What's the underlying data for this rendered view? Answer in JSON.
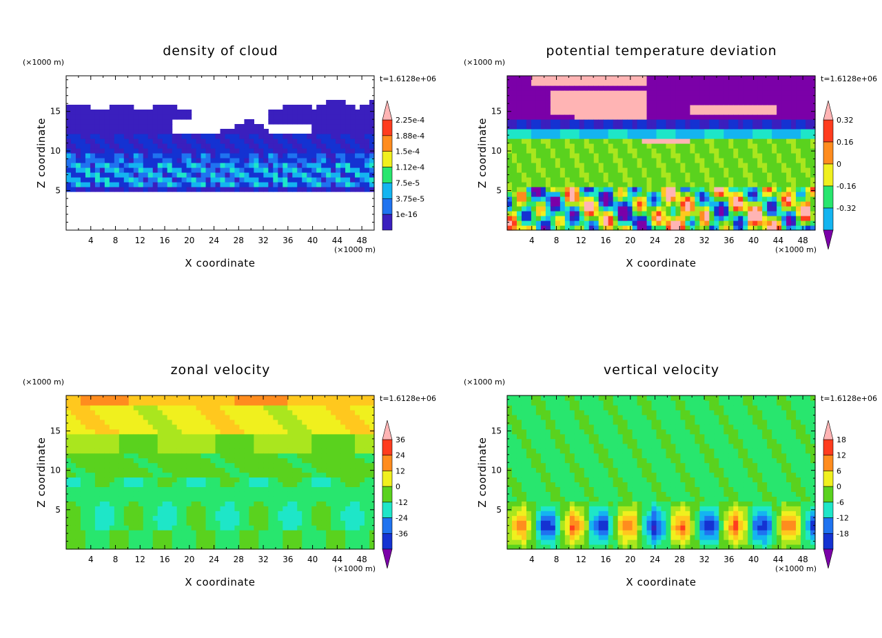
{
  "colors": {
    "palette": [
      "#7b00a8",
      "#3a1fbe",
      "#1432d2",
      "#1f73f0",
      "#14b4f0",
      "#1ee6c8",
      "#28e66e",
      "#5ad21e",
      "#aae61e",
      "#f0f01e",
      "#ffc81e",
      "#ff8c1e",
      "#ff3c1e",
      "#ffb4b4"
    ],
    "axis": "#000000"
  },
  "chart_data": [
    {
      "type": "heatmap",
      "title": "density of cloud",
      "xlabel": "X coordinate",
      "ylabel": "Z coordinate",
      "x_unit": "(×1000 m)",
      "y_unit": "(×1000 m)",
      "time_label": "t=1.6128e+06",
      "xlim": [
        0,
        50
      ],
      "ylim": [
        0,
        19.5
      ],
      "x_ticks": [
        "4",
        "8",
        "12",
        "16",
        "20",
        "24",
        "28",
        "32",
        "36",
        "40",
        "44",
        "48"
      ],
      "y_ticks": [
        "5",
        "10",
        "15"
      ],
      "colorbar_labels": [
        "2.25e-4",
        "1.88e-4",
        "1.5e-4",
        "1.12e-4",
        "7.5e-5",
        "3.75e-5",
        "1e-16"
      ],
      "colorbar_levels": 7,
      "colorbar_arrow_top": true,
      "colorbar_arrow_bottom": false
    },
    {
      "type": "heatmap",
      "title": "potential temperature deviation",
      "xlabel": "X coordinate",
      "ylabel": "Z coordinate",
      "x_unit": "(×1000 m)",
      "y_unit": "(×1000 m)",
      "time_label": "t=1.6128e+06",
      "xlim": [
        0,
        50
      ],
      "ylim": [
        0,
        19.5
      ],
      "x_ticks": [
        "4",
        "8",
        "12",
        "16",
        "20",
        "24",
        "28",
        "32",
        "36",
        "40",
        "44",
        "48"
      ],
      "y_ticks": [
        "5",
        "10",
        "15"
      ],
      "colorbar_labels": [
        "0.32",
        "0.16",
        "0",
        "-0.16",
        "-0.32"
      ],
      "colorbar_levels": 5,
      "colorbar_arrow_top": true,
      "colorbar_arrow_bottom": true
    },
    {
      "type": "heatmap",
      "title": "zonal velocity",
      "xlabel": "X coordinate",
      "ylabel": "Z coordinate",
      "x_unit": "(×1000 m)",
      "y_unit": "(×1000 m)",
      "time_label": "t=1.6128e+06",
      "xlim": [
        0,
        50
      ],
      "ylim": [
        0,
        19.5
      ],
      "x_ticks": [
        "4",
        "8",
        "12",
        "16",
        "20",
        "24",
        "28",
        "32",
        "36",
        "40",
        "44",
        "48"
      ],
      "y_ticks": [
        "5",
        "10",
        "15"
      ],
      "colorbar_labels": [
        "36",
        "24",
        "12",
        "0",
        "-12",
        "-24",
        "-36"
      ],
      "colorbar_levels": 7,
      "colorbar_arrow_top": true,
      "colorbar_arrow_bottom": true
    },
    {
      "type": "heatmap",
      "title": "vertical velocity",
      "xlabel": "X coordinate",
      "ylabel": "Z coordinate",
      "x_unit": "(×1000 m)",
      "y_unit": "(×1000 m)",
      "time_label": "t=1.6128e+06",
      "xlim": [
        0,
        50
      ],
      "ylim": [
        0,
        19.5
      ],
      "x_ticks": [
        "4",
        "8",
        "12",
        "16",
        "20",
        "24",
        "28",
        "32",
        "36",
        "40",
        "44",
        "48"
      ],
      "y_ticks": [
        "5",
        "10",
        "15"
      ],
      "colorbar_labels": [
        "18",
        "12",
        "6",
        "0",
        "-6",
        "-12",
        "-18"
      ],
      "colorbar_levels": 7,
      "colorbar_arrow_top": true,
      "colorbar_arrow_bottom": true
    }
  ]
}
